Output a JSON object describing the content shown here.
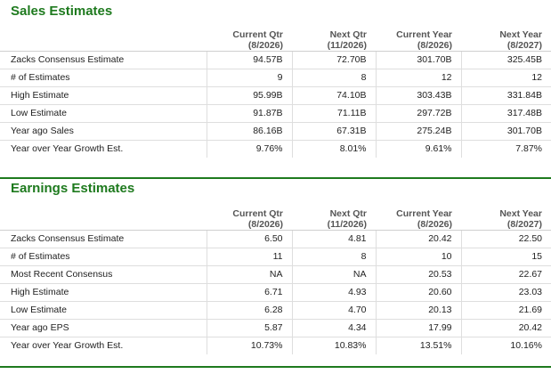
{
  "sales": {
    "title": "Sales Estimates",
    "headers": [
      {
        "line1": "",
        "line2": ""
      },
      {
        "line1": "Current Qtr",
        "line2": "(8/2026)"
      },
      {
        "line1": "Next Qtr",
        "line2": "(11/2026)"
      },
      {
        "line1": "Current Year",
        "line2": "(8/2026)"
      },
      {
        "line1": "Next Year",
        "line2": "(8/2027)"
      }
    ],
    "rows": [
      {
        "label": "Zacks Consensus Estimate",
        "values": [
          "94.57B",
          "72.70B",
          "301.70B",
          "325.45B"
        ]
      },
      {
        "label": "# of Estimates",
        "values": [
          "9",
          "8",
          "12",
          "12"
        ]
      },
      {
        "label": "High Estimate",
        "values": [
          "95.99B",
          "74.10B",
          "303.43B",
          "331.84B"
        ]
      },
      {
        "label": "Low Estimate",
        "values": [
          "91.87B",
          "71.11B",
          "297.72B",
          "317.48B"
        ]
      },
      {
        "label": "Year ago Sales",
        "values": [
          "86.16B",
          "67.31B",
          "275.24B",
          "301.70B"
        ]
      },
      {
        "label": "Year over Year Growth Est.",
        "values": [
          "9.76%",
          "8.01%",
          "9.61%",
          "7.87%"
        ]
      }
    ]
  },
  "earnings": {
    "title": "Earnings Estimates",
    "headers": [
      {
        "line1": "",
        "line2": ""
      },
      {
        "line1": "Current Qtr",
        "line2": "(8/2026)"
      },
      {
        "line1": "Next Qtr",
        "line2": "(11/2026)"
      },
      {
        "line1": "Current Year",
        "line2": "(8/2026)"
      },
      {
        "line1": "Next Year",
        "line2": "(8/2027)"
      }
    ],
    "rows": [
      {
        "label": "Zacks Consensus Estimate",
        "values": [
          "6.50",
          "4.81",
          "20.42",
          "22.50"
        ]
      },
      {
        "label": "# of Estimates",
        "values": [
          "11",
          "8",
          "10",
          "15"
        ]
      },
      {
        "label": "Most Recent Consensus",
        "values": [
          "NA",
          "NA",
          "20.53",
          "22.67"
        ]
      },
      {
        "label": "High Estimate",
        "values": [
          "6.71",
          "4.93",
          "20.60",
          "23.03"
        ]
      },
      {
        "label": "Low Estimate",
        "values": [
          "6.28",
          "4.70",
          "20.13",
          "21.69"
        ]
      },
      {
        "label": "Year ago EPS",
        "values": [
          "5.87",
          "4.34",
          "17.99",
          "20.42"
        ]
      },
      {
        "label": "Year over Year Growth Est.",
        "values": [
          "10.73%",
          "10.83%",
          "13.51%",
          "10.16%"
        ]
      }
    ]
  }
}
